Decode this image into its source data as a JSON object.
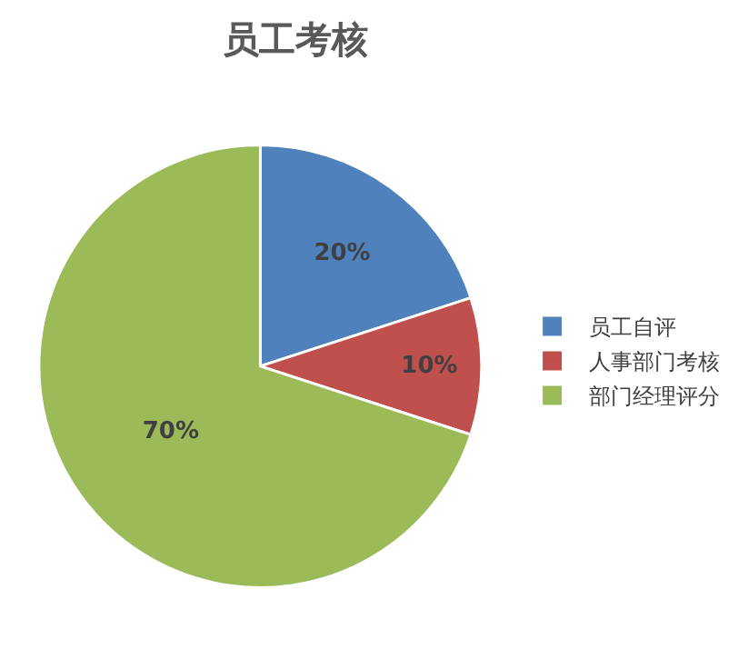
{
  "chart_data": {
    "type": "pie",
    "title": "员工考核",
    "categories": [
      "员工自评",
      "人事部门考核",
      "部门经理评分"
    ],
    "values": [
      20,
      10,
      70
    ],
    "colors": [
      "#4f81bd",
      "#c0504d",
      "#9bbb59"
    ],
    "value_labels": [
      "20%",
      "10%",
      "70%"
    ],
    "legend": "right"
  }
}
